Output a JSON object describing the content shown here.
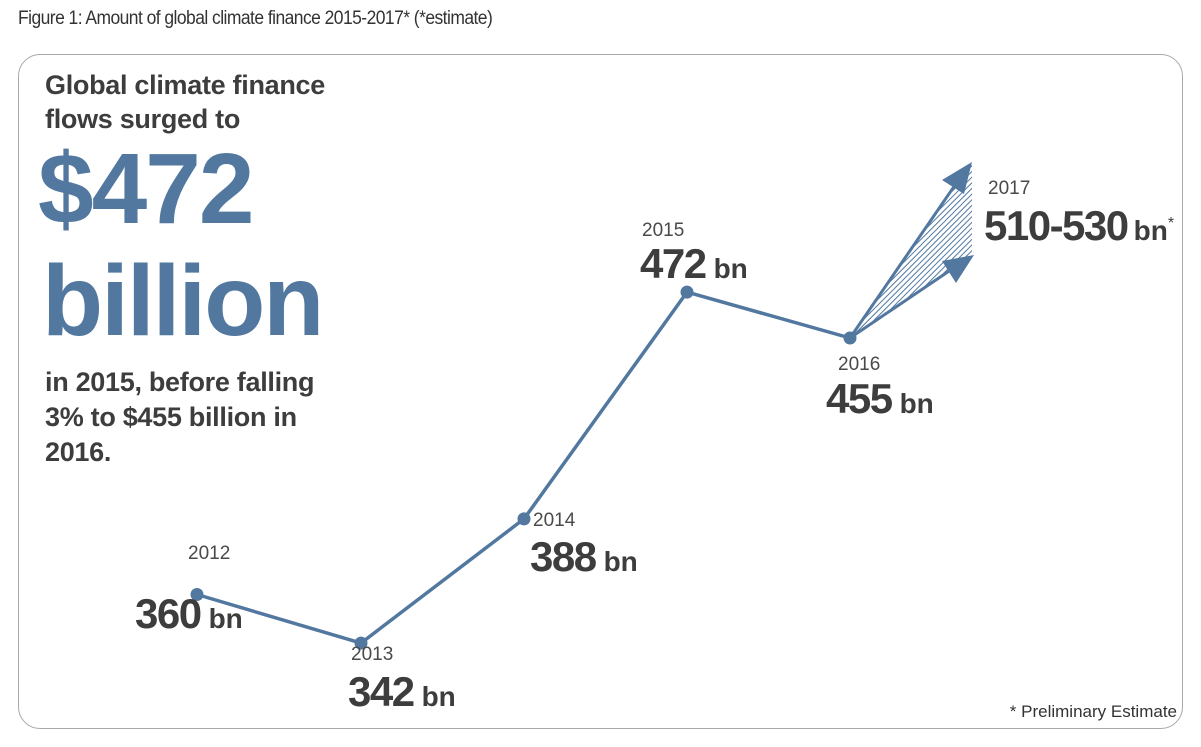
{
  "caption": "Figure 1: Amount of global climate finance 2015-2017* (*estimate)",
  "headline": {
    "line1": "Global climate finance",
    "line2": "flows surged to",
    "amount": "$472",
    "unit": "billion",
    "sub1": "in 2015, before falling",
    "sub2": "3% to $455 billion in",
    "sub3": "2016."
  },
  "footnote": "* Preliminary Estimate",
  "colors": {
    "accent": "#5278a0",
    "text": "#3d3d3d",
    "frame": "#a8a8a8"
  },
  "chart_data": {
    "type": "line",
    "title": "",
    "xlabel": "",
    "ylabel": "",
    "x": [
      "2012",
      "2013",
      "2014",
      "2015",
      "2016"
    ],
    "values": [
      360,
      342,
      388,
      472,
      455
    ],
    "value_labels": [
      "360",
      "342",
      "388",
      "472",
      "455"
    ],
    "unit": "bn",
    "estimate": {
      "year": "2017",
      "low": 510,
      "high": 530,
      "label": "510-530",
      "unit": "bn",
      "marker": "*"
    },
    "grid": false,
    "legend": "none"
  }
}
